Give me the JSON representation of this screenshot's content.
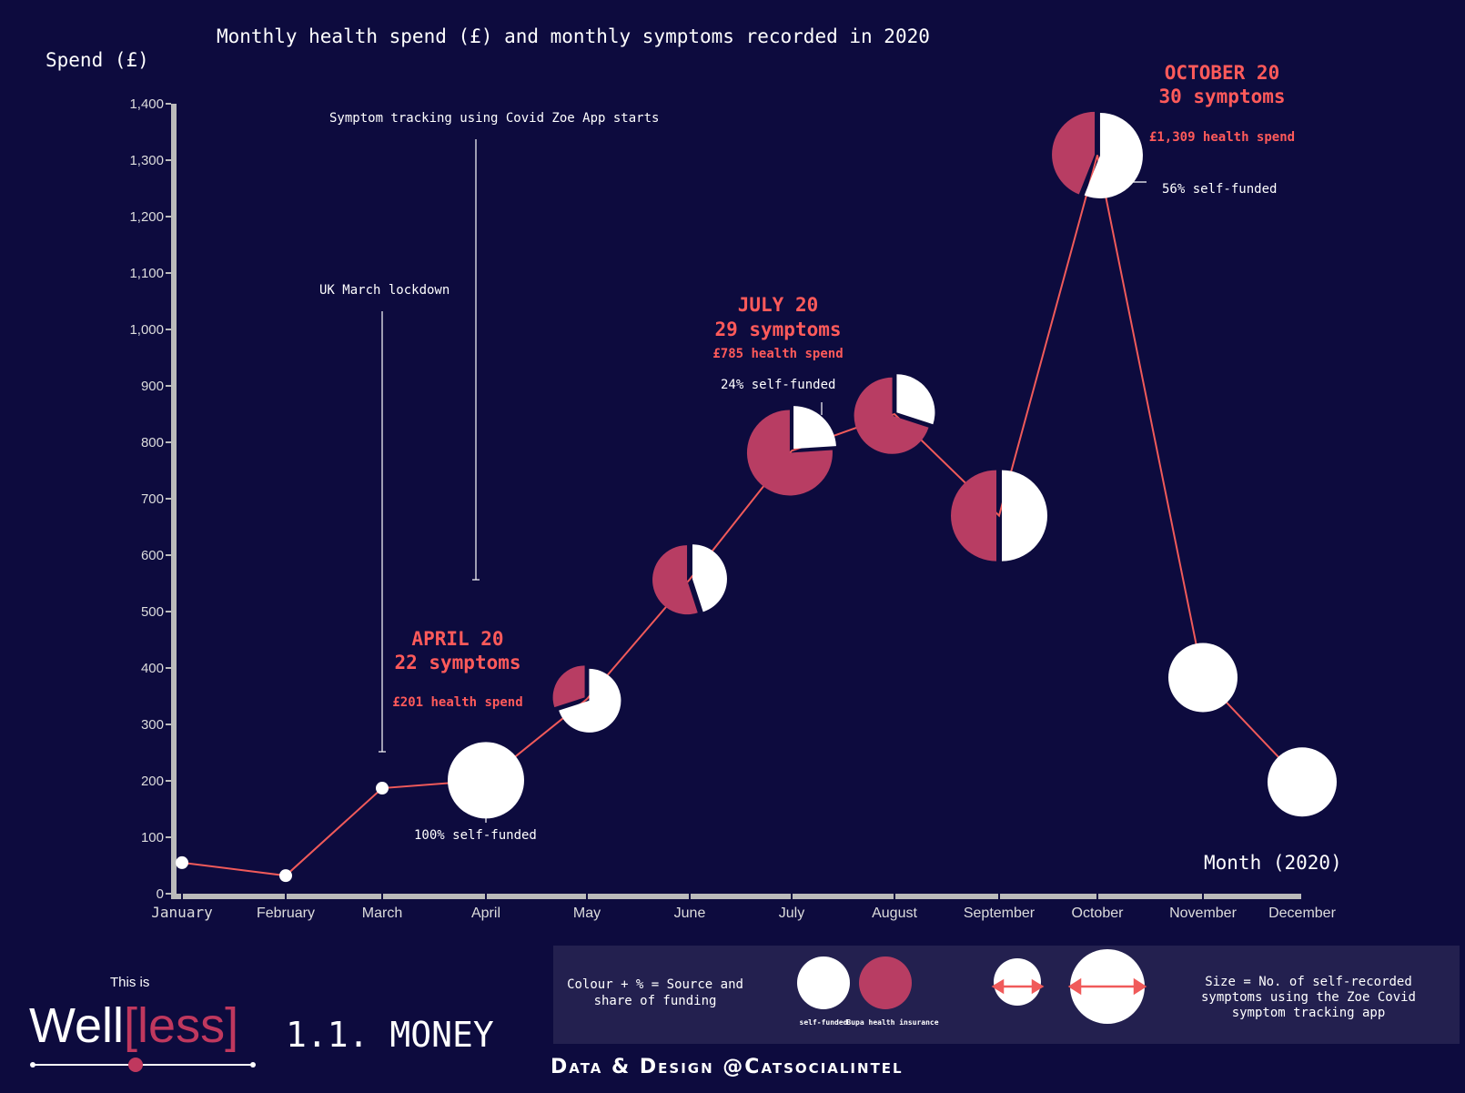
{
  "chart_data": {
    "type": "line",
    "title": "Monthly health spend (£) and monthly symptoms recorded in 2020",
    "ylabel": "Spend (£)",
    "xlabel": "Month (2020)",
    "ylim": [
      0,
      1400
    ],
    "yticks": [
      0,
      100,
      200,
      300,
      400,
      500,
      600,
      700,
      800,
      900,
      1000,
      1100,
      1200,
      1300,
      1400
    ],
    "ytick_labels": [
      "0",
      "100",
      "200",
      "300",
      "400",
      "500",
      "600",
      "700",
      "800",
      "900",
      "1,000",
      "1,100",
      "1,200",
      "1,300",
      "1,400"
    ],
    "categories": [
      "January",
      "February",
      "March",
      "April",
      "May",
      "June",
      "July",
      "August",
      "September",
      "October",
      "November",
      "December"
    ],
    "values": [
      55,
      32,
      187,
      201,
      345,
      557,
      785,
      850,
      670,
      1309,
      383,
      198
    ],
    "self_funded_share": [
      1.0,
      1.0,
      1.0,
      1.0,
      0.7,
      0.45,
      0.24,
      0.3,
      0.5,
      0.56,
      1.0,
      1.0
    ],
    "has_pie": [
      false,
      false,
      false,
      true,
      true,
      true,
      true,
      true,
      true,
      true,
      true,
      true
    ],
    "pie_size": [
      0,
      0,
      0,
      42,
      35,
      38,
      47,
      42,
      50,
      47,
      38,
      38
    ],
    "colors": {
      "line": "#f05a5a",
      "self_funded": "#ffffff",
      "insurance": "#b83d63",
      "background": "#0d0b3e",
      "axis": "#bbbbbb"
    }
  },
  "annotations": {
    "lockdown": "UK March lockdown",
    "zoe": "Symptom tracking using Covid Zoe App starts",
    "april_title": "APRIL 20",
    "april_symptoms": "22 symptoms",
    "april_spend": "£201 health spend",
    "april_share": "100% self-funded",
    "july_title": "JULY 20",
    "july_symptoms": "29 symptoms",
    "july_spend": "£785 health spend",
    "july_share": "24% self-funded",
    "october_title": "OCTOBER 20",
    "october_symptoms": "30 symptoms",
    "october_spend": "£1,309 health spend",
    "october_share": "56% self-funded"
  },
  "legend": {
    "colour_text": "Colour + % = Source and share of funding",
    "self_funded": "self-funded",
    "bupa": "Bupa health insurance",
    "size_text": "Size = No. of self-recorded symptoms using the Zoe Covid symptom tracking app"
  },
  "branding": {
    "this_is": "This is",
    "well": "Well",
    "less": "[less]",
    "section": "1.1. MONEY",
    "credit": "Data & Design @Catsocialintel"
  }
}
